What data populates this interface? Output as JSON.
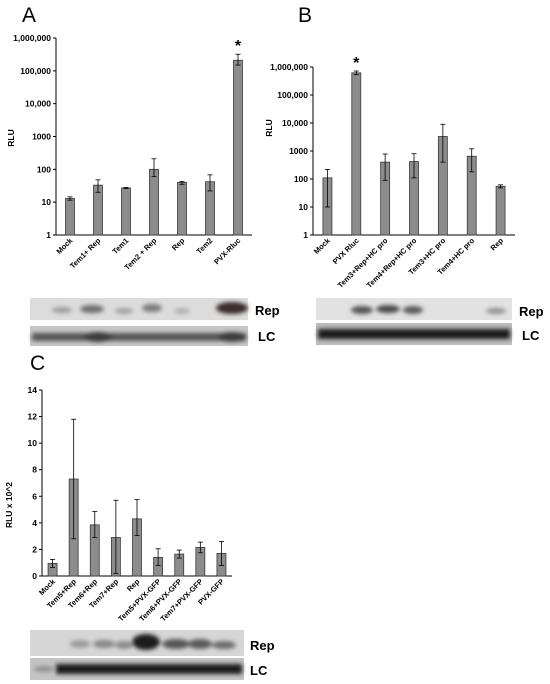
{
  "chart_data": [
    {
      "panel": "A",
      "type": "bar",
      "ylabel": "RLU",
      "yscale": "log",
      "ylim": [
        1,
        1000000
      ],
      "yticks": [
        "1",
        "10",
        "100",
        "1000",
        "10,000",
        "100,000",
        "1,000,000"
      ],
      "categories": [
        "Mock",
        "Tem1+ Rep",
        "Tem1",
        "Tem2 + Rep",
        "Rep",
        "Tem2",
        "PVX-Rluc"
      ],
      "values": [
        13,
        33,
        27,
        100,
        40,
        42,
        210000
      ],
      "error_low": [
        11.5,
        20,
        26,
        60,
        35,
        22,
        150000
      ],
      "error_high": [
        14.5,
        48,
        28,
        210,
        43,
        68,
        320000
      ],
      "annotations": [
        {
          "category": "PVX-Rluc",
          "text": "*"
        }
      ],
      "blot_labels": [
        "Rep",
        "LC"
      ]
    },
    {
      "panel": "B",
      "type": "bar",
      "ylabel": "RLU",
      "yscale": "log",
      "ylim": [
        1,
        1000000
      ],
      "yticks": [
        "1",
        "10",
        "100",
        "1000",
        "10,000",
        "100,000",
        "1,000,000"
      ],
      "categories": [
        "Mock",
        "PVX Rluc",
        "Tem3+Rep+HC pro",
        "Tem4+Rep+HC pro",
        "Tem3+HC pro",
        "Tem4+HC pro",
        "Rep"
      ],
      "values": [
        110,
        620000,
        400,
        420,
        3300,
        650,
        55
      ],
      "error_low": [
        10,
        530000,
        90,
        110,
        400,
        180,
        48
      ],
      "error_high": [
        220,
        720000,
        780,
        800,
        9000,
        1200,
        62
      ],
      "annotations": [
        {
          "category": "PVX Rluc",
          "text": "*"
        }
      ],
      "blot_labels": [
        "Rep",
        "LC"
      ]
    },
    {
      "panel": "C",
      "type": "bar",
      "ylabel": "RLU x 10^2",
      "yscale": "linear",
      "ylim": [
        0,
        14
      ],
      "yticks": [
        "0",
        "2",
        "4",
        "6",
        "8",
        "10",
        "12",
        "14"
      ],
      "categories": [
        "Mock",
        "Tem5+Rep",
        "Tem6+Rep",
        "Tem7+Rep",
        "Rep",
        "Tem5+PVX-GFP",
        "Tem6+PVX-GFP",
        "Tem7+PVX-GFP",
        "PVX-GFP"
      ],
      "values": [
        0.95,
        7.3,
        3.85,
        2.9,
        4.3,
        1.4,
        1.65,
        2.15,
        1.7
      ],
      "error_low": [
        0.65,
        2.8,
        2.9,
        0.2,
        3.05,
        0.8,
        1.35,
        1.75,
        0.8
      ],
      "error_high": [
        1.25,
        11.8,
        4.85,
        5.7,
        5.75,
        2.05,
        1.95,
        2.55,
        2.6
      ],
      "blot_labels": [
        "Rep",
        "LC"
      ]
    }
  ]
}
